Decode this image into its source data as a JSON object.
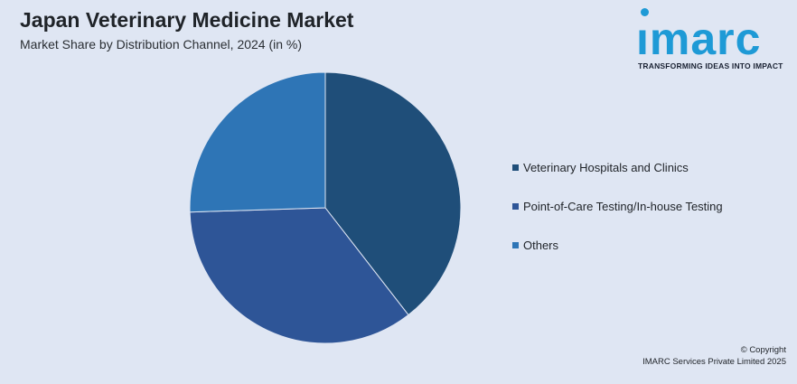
{
  "title": "Japan Veterinary Medicine Market",
  "subtitle": "Market Share by Distribution Channel, 2024 (in %)",
  "logo": {
    "word": "ımarc",
    "tagline": "TRANSFORMING IDEAS INTO IMPACT"
  },
  "copyright": {
    "line1": "© Copyright",
    "line2": "IMARC Services Private Limited 2025"
  },
  "chart_data": {
    "type": "pie",
    "title": "Japan Veterinary Medicine Market",
    "subtitle": "Market Share by Distribution Channel, 2024 (in %)",
    "legend_position": "right",
    "series": [
      {
        "name": "Veterinary Hospitals and Clinics",
        "value": 39.5,
        "color": "#1f4e79"
      },
      {
        "name": "Point-of-Care Testing/In-house Testing",
        "value": 35.0,
        "color": "#2e5597"
      },
      {
        "name": "Others",
        "value": 25.5,
        "color": "#2e75b6"
      }
    ]
  }
}
